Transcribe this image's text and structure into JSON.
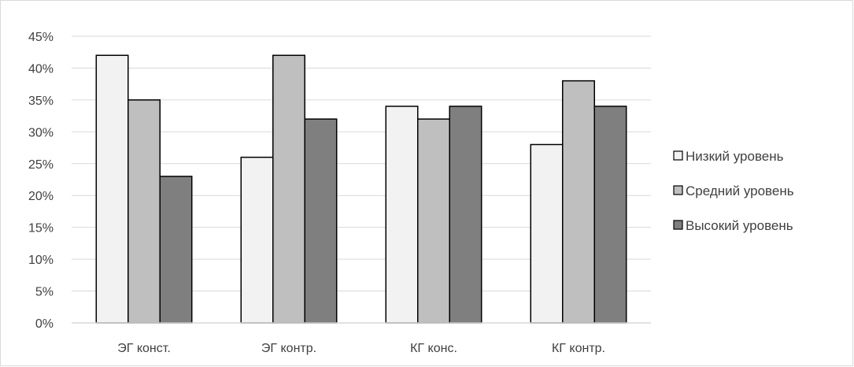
{
  "chart_data": {
    "type": "bar",
    "title": "",
    "xlabel": "",
    "ylabel": "",
    "categories": [
      "ЭГ конст.",
      "ЭГ контр.",
      "КГ конс.",
      "КГ контр."
    ],
    "series": [
      {
        "name": "Низкий уровень",
        "values": [
          42,
          26,
          34,
          28
        ],
        "color": "#f2f2f2"
      },
      {
        "name": "Средний уровень",
        "values": [
          35,
          42,
          32,
          38
        ],
        "color": "#bfbfbf"
      },
      {
        "name": "Высокий уровень",
        "values": [
          23,
          32,
          34,
          34
        ],
        "color": "#7f7f7f"
      }
    ],
    "ylim": [
      0,
      45
    ],
    "ytick_step": 5,
    "ytick_suffix": "%",
    "grid": true,
    "legend_position": "right",
    "bar_stroke": "#000000",
    "grid_color": "#d9d9d9"
  }
}
